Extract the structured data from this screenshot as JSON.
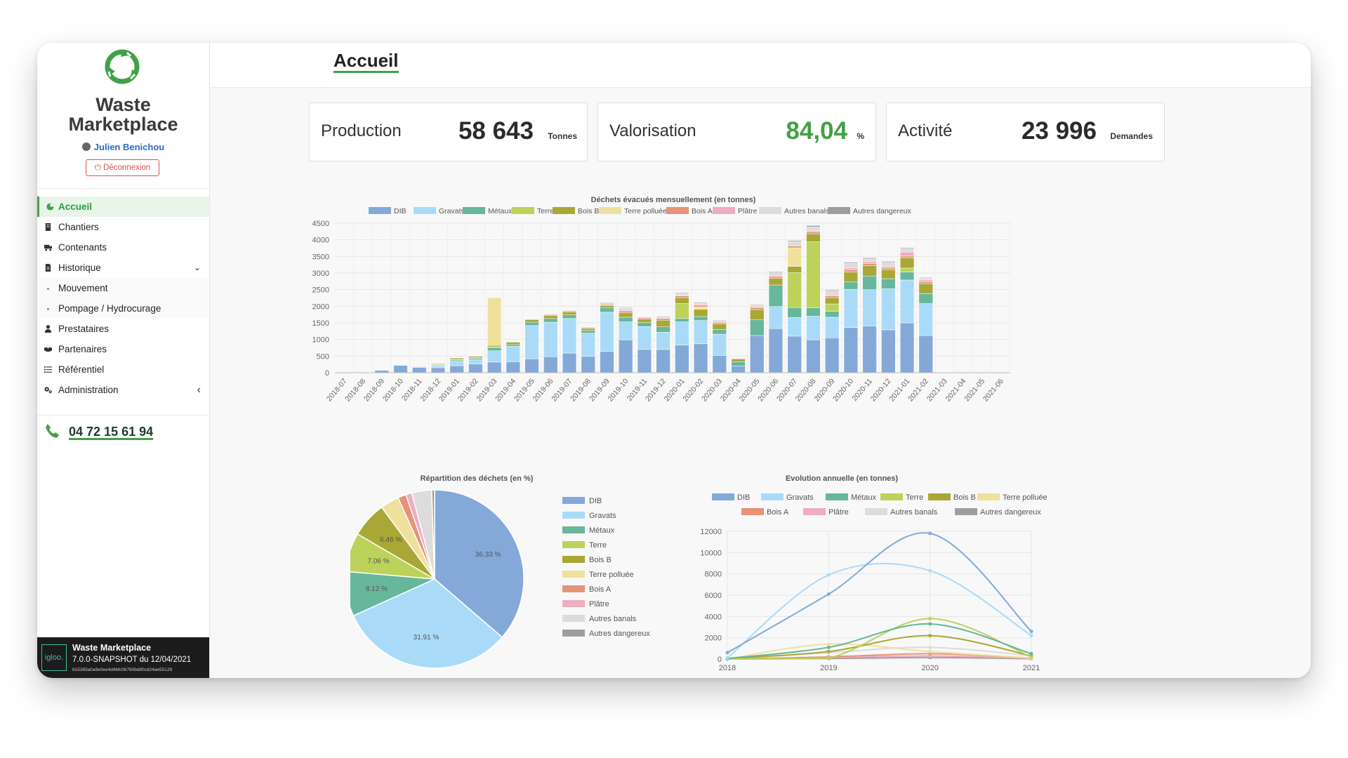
{
  "app": {
    "brand_line1": "Waste",
    "brand_line2": "Marketplace",
    "user": "Julien Benichou",
    "logout": "Déconnexion"
  },
  "nav": [
    {
      "label": "Accueil",
      "icon": "pie-chart-icon",
      "active": true
    },
    {
      "label": "Chantiers",
      "icon": "building-icon"
    },
    {
      "label": "Contenants",
      "icon": "truck-icon"
    },
    {
      "label": "Historique",
      "icon": "file-icon",
      "caret": "⌄"
    },
    {
      "label": "Mouvement",
      "sub": true
    },
    {
      "label": "Pompage / Hydrocurage",
      "sub": true
    },
    {
      "label": "Prestataires",
      "icon": "user-tie-icon"
    },
    {
      "label": "Partenaires",
      "icon": "handshake-icon"
    },
    {
      "label": "Référentiel",
      "icon": "list-icon"
    },
    {
      "label": "Administration",
      "icon": "gears-icon",
      "caret": "‹"
    }
  ],
  "phone": "04 72 15 61 94",
  "footer": {
    "logo": "igloo.",
    "line1": "Waste Marketplace",
    "line2": "7.0.0-SNAPSHOT du 12/04/2021",
    "line3": "815365a0a9e0ee4d4bfc0b760bd90cd24ae55129"
  },
  "page": {
    "title": "Accueil"
  },
  "kpis": [
    {
      "label": "Production",
      "value": "58 643",
      "unit": "Tonnes",
      "color": "#2b2b2b"
    },
    {
      "label": "Valorisation",
      "value": "84,04",
      "unit": "%",
      "color": "#43a047"
    },
    {
      "label": "Activité",
      "value": "23 996",
      "unit": "Demandes",
      "color": "#2b2b2b"
    }
  ],
  "colors": {
    "DIB": "#84a9d9",
    "Gravats": "#a9dbf9",
    "Métaux": "#66b79b",
    "Terre": "#bcd25a",
    "Bois B": "#a9a735",
    "Terre polluée": "#efe19c",
    "Bois A": "#e69378",
    "Plâtre": "#eeadbf",
    "Autres banals": "#dcdcdc",
    "Autres dangereux": "#9e9e9e"
  },
  "chart_data": [
    {
      "type": "bar",
      "stacked": true,
      "title": "Déchets évacués mensuellement (en tonnes)",
      "ylim": [
        0,
        4500
      ],
      "yticks": [
        0,
        500,
        1000,
        1500,
        2000,
        2500,
        3000,
        3500,
        4000,
        4500
      ],
      "legend_position": "top",
      "grid": true,
      "categories": [
        "2018-07",
        "2018-08",
        "2018-09",
        "2018-10",
        "2018-11",
        "2018-12",
        "2019-01",
        "2019-02",
        "2019-03",
        "2019-04",
        "2019-05",
        "2019-06",
        "2019-07",
        "2019-08",
        "2019-09",
        "2019-10",
        "2019-11",
        "2019-12",
        "2020-01",
        "2020-02",
        "2020-03",
        "2020-04",
        "2020-05",
        "2020-06",
        "2020-07",
        "2020-08",
        "2020-09",
        "2020-10",
        "2020-11",
        "2020-12",
        "2021-01",
        "2021-02",
        "2021-03",
        "2021-04",
        "2021-05",
        "2021-06"
      ],
      "series": [
        {
          "name": "DIB",
          "values": [
            0,
            0,
            70,
            220,
            160,
            150,
            210,
            260,
            320,
            330,
            420,
            480,
            590,
            490,
            640,
            990,
            700,
            700,
            830,
            870,
            520,
            200,
            1120,
            1330,
            1100,
            990,
            1050,
            1360,
            1400,
            1290,
            1500,
            1120,
            10,
            0,
            0,
            0
          ]
        },
        {
          "name": "Gravats",
          "values": [
            0,
            0,
            0,
            0,
            20,
            60,
            130,
            130,
            340,
            470,
            1000,
            1040,
            1040,
            700,
            1180,
            540,
            690,
            520,
            700,
            700,
            640,
            0,
            0,
            660,
            560,
            710,
            620,
            1150,
            1100,
            1240,
            1290,
            960,
            0,
            0,
            0,
            0
          ]
        },
        {
          "name": "Métaux",
          "values": [
            0,
            0,
            0,
            0,
            0,
            20,
            40,
            40,
            100,
            50,
            100,
            110,
            110,
            80,
            130,
            140,
            120,
            160,
            100,
            120,
            140,
            130,
            480,
            650,
            300,
            250,
            180,
            220,
            400,
            300,
            240,
            300,
            0,
            0,
            0,
            0
          ]
        },
        {
          "name": "Terre",
          "values": [
            0,
            0,
            0,
            0,
            0,
            20,
            20,
            20,
            20,
            0,
            0,
            0,
            0,
            0,
            0,
            0,
            0,
            0,
            450,
            0,
            0,
            0,
            0,
            0,
            1050,
            1990,
            220,
            0,
            0,
            0,
            120,
            0,
            0,
            0,
            0,
            0
          ]
        },
        {
          "name": "Bois B",
          "values": [
            0,
            0,
            0,
            0,
            0,
            20,
            40,
            40,
            40,
            70,
            70,
            90,
            90,
            60,
            70,
            130,
            100,
            200,
            180,
            220,
            170,
            80,
            300,
            200,
            190,
            240,
            190,
            300,
            320,
            270,
            300,
            300,
            0,
            0,
            0,
            0
          ]
        },
        {
          "name": "Terre polluée",
          "values": [
            0,
            0,
            0,
            0,
            0,
            0,
            0,
            0,
            1440,
            0,
            0,
            0,
            0,
            0,
            0,
            0,
            0,
            0,
            0,
            70,
            0,
            0,
            0,
            0,
            560,
            0,
            0,
            0,
            0,
            0,
            0,
            0,
            0,
            0,
            0,
            0
          ]
        },
        {
          "name": "Bois A",
          "values": [
            0,
            0,
            0,
            0,
            0,
            0,
            0,
            0,
            0,
            0,
            20,
            30,
            30,
            30,
            30,
            60,
            40,
            50,
            50,
            50,
            40,
            20,
            60,
            50,
            50,
            60,
            50,
            60,
            60,
            50,
            60,
            50,
            0,
            0,
            0,
            0
          ]
        },
        {
          "name": "Plâtre",
          "values": [
            0,
            0,
            0,
            0,
            0,
            0,
            0,
            0,
            0,
            0,
            0,
            0,
            0,
            0,
            0,
            0,
            0,
            0,
            20,
            30,
            30,
            0,
            20,
            30,
            30,
            30,
            30,
            60,
            60,
            50,
            120,
            60,
            0,
            0,
            0,
            0
          ]
        },
        {
          "name": "Autres banals",
          "values": [
            0,
            0,
            0,
            0,
            0,
            0,
            0,
            0,
            0,
            20,
            20,
            20,
            20,
            20,
            50,
            80,
            40,
            80,
            100,
            80,
            50,
            20,
            60,
            90,
            110,
            120,
            120,
            140,
            90,
            120,
            100,
            60,
            0,
            0,
            0,
            0
          ]
        },
        {
          "name": "Autres dangereux",
          "values": [
            0,
            0,
            0,
            0,
            0,
            0,
            0,
            0,
            0,
            0,
            0,
            0,
            0,
            0,
            20,
            20,
            10,
            10,
            10,
            10,
            10,
            0,
            20,
            30,
            30,
            40,
            30,
            30,
            30,
            30,
            30,
            20,
            0,
            0,
            0,
            0
          ]
        }
      ]
    },
    {
      "type": "pie",
      "title": "Répartition des déchets (en %)",
      "legend_position": "right",
      "categories": [
        "DIB",
        "Gravats",
        "Métaux",
        "Terre",
        "Bois B",
        "Terre polluée",
        "Bois A",
        "Plâtre",
        "Autres banals",
        "Autres dangereux"
      ],
      "values": [
        36.33,
        31.91,
        8.12,
        7.06,
        6.46,
        3.4,
        1.5,
        1.1,
        3.6,
        0.52
      ],
      "labels": [
        "36.33 %",
        "31.91 %",
        "8.12 %",
        "7.06 %",
        "6.46 %",
        "",
        "",
        "",
        "",
        ""
      ]
    },
    {
      "type": "line",
      "title": "Evolution annuelle (en tonnes)",
      "legend_position": "top",
      "x": [
        "2018",
        "2019",
        "2020",
        "2021"
      ],
      "ylim": [
        0,
        12000
      ],
      "yticks": [
        0,
        2000,
        4000,
        6000,
        8000,
        10000,
        12000
      ],
      "series": [
        {
          "name": "DIB",
          "values": [
            600,
            6100,
            11800,
            2600
          ]
        },
        {
          "name": "Gravats",
          "values": [
            100,
            7900,
            8300,
            2200
          ]
        },
        {
          "name": "Métaux",
          "values": [
            50,
            1100,
            3300,
            500
          ]
        },
        {
          "name": "Terre",
          "values": [
            0,
            100,
            3800,
            200
          ]
        },
        {
          "name": "Bois B",
          "values": [
            50,
            700,
            2200,
            300
          ]
        },
        {
          "name": "Terre polluée",
          "values": [
            0,
            1400,
            700,
            100
          ]
        },
        {
          "name": "Bois A",
          "values": [
            0,
            200,
            500,
            100
          ]
        },
        {
          "name": "Plâtre",
          "values": [
            0,
            150,
            300,
            80
          ]
        },
        {
          "name": "Autres banals",
          "values": [
            0,
            600,
            1100,
            300
          ]
        },
        {
          "name": "Autres dangereux",
          "values": [
            0,
            50,
            150,
            30
          ]
        }
      ]
    }
  ]
}
